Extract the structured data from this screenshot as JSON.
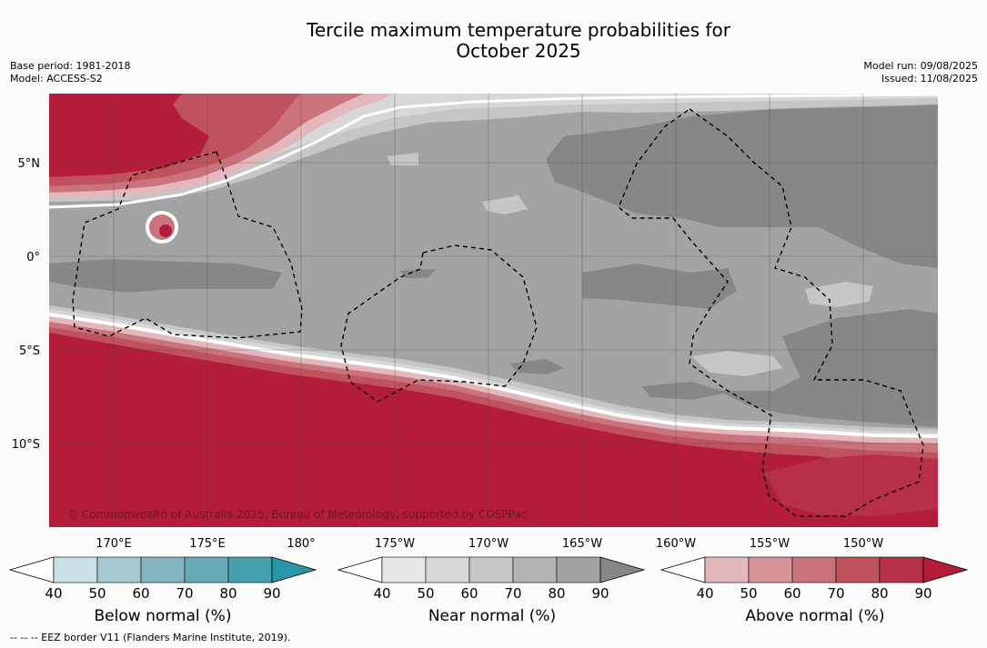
{
  "title": {
    "line1": "Tercile maximum temperature probabilities for",
    "line2": "October 2025"
  },
  "meta": {
    "base_period": "Base period: 1981-2018",
    "model": "Model: ACCESS-S2",
    "model_run": "Model run: 09/08/2025",
    "issued": "Issued: 11/08/2025"
  },
  "map": {
    "lat_labels": [
      "5°N",
      "0°",
      "5°S",
      "10°S"
    ],
    "lon_labels": [
      "170°E",
      "175°E",
      "180°",
      "175°W",
      "170°W",
      "165°W",
      "160°W",
      "155°W",
      "150°W"
    ],
    "copyright": "© Commonwealth of Australia 2025, Bureau of Meteorology, supported by COSPPac",
    "colors": {
      "above_dark": "#b31d3a",
      "near_mid": "#a3a3a3",
      "near_dark": "#878787",
      "near_light": "#c6c6c6"
    }
  },
  "colorbars": [
    {
      "id": "below",
      "title": "Below normal (%)",
      "ticks": [
        "40",
        "50",
        "60",
        "70",
        "80",
        "90"
      ],
      "colors": [
        "#c9e1e7",
        "#a6c8cf",
        "#86b6c1",
        "#68aab8",
        "#45a0ae",
        "#2a95a8"
      ]
    },
    {
      "id": "near",
      "title": "Near normal (%)",
      "ticks": [
        "40",
        "50",
        "60",
        "70",
        "80",
        "90"
      ],
      "colors": [
        "#e6e6e6",
        "#d7d7d7",
        "#c6c6c6",
        "#b4b4b4",
        "#a3a3a3",
        "#878787"
      ]
    },
    {
      "id": "above",
      "title": "Above normal (%)",
      "ticks": [
        "40",
        "50",
        "60",
        "70",
        "80",
        "90"
      ],
      "colors": [
        "#e2b8bc",
        "#d7959b",
        "#cb737c",
        "#c0525e",
        "#b83047",
        "#b31d3a"
      ]
    }
  ],
  "footer": "--  --  -- EEZ border V11 (Flanders Marine Institute, 2019)."
}
